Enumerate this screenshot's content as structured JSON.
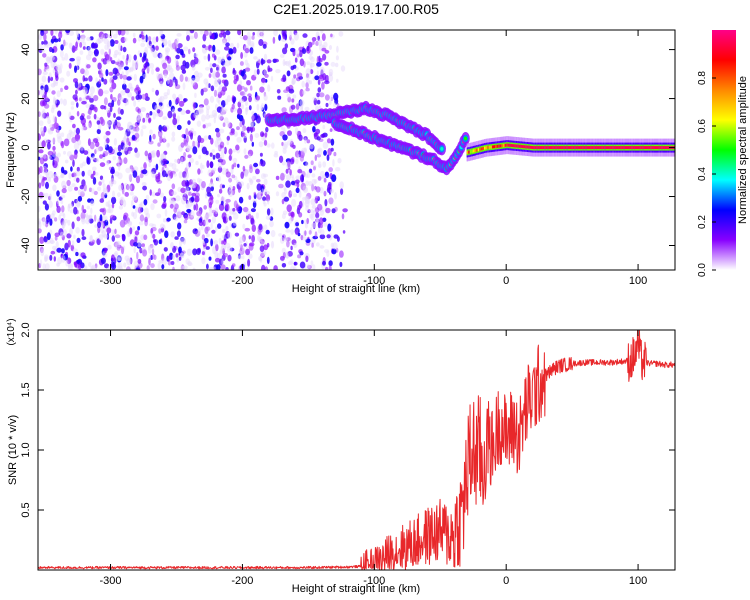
{
  "figure": {
    "title": "C2E1.2025.019.17.00.R05"
  },
  "chart_data": [
    {
      "type": "heatmap",
      "xlabel": "Height of straight line (km)",
      "ylabel": "Frequency (Hz)",
      "xlim": [
        -355,
        128
      ],
      "ylim": [
        -50,
        48
      ],
      "x_ticks": [
        -300,
        -200,
        -100,
        0,
        100
      ],
      "x_tick_labels": [
        "-300",
        "-200",
        "-100",
        "0",
        "100"
      ],
      "y_ticks": [
        -40,
        -20,
        0,
        20,
        40
      ],
      "y_tick_labels": [
        "-40",
        "-20",
        "0",
        "20",
        "40"
      ],
      "colorbar": {
        "label": "Normalized spectral amplitude",
        "range": [
          0,
          1
        ],
        "ticks": [
          0,
          0.2,
          0.4,
          0.6,
          0.8
        ],
        "tick_labels": [
          "0.0",
          "0.2",
          "0.4",
          "0.6",
          "0.8"
        ],
        "colors": [
          "#ffffff",
          "#8800ff",
          "#0000ff",
          "#00ffff",
          "#00ff00",
          "#ffff00",
          "#ff8800",
          "#ff0000",
          "#ff0088"
        ]
      },
      "features": {
        "noise_region_x": [
          -355,
          -120
        ],
        "noise_gap_x": [
          -180,
          -170
        ],
        "upper_track": [
          [
            -180,
            11
          ],
          [
            -150,
            12
          ],
          [
            -125,
            14
          ],
          [
            -105,
            16
          ],
          [
            -90,
            13
          ],
          [
            -75,
            9
          ],
          [
            -60,
            5
          ],
          [
            -48,
            -1
          ]
        ],
        "lower_track": [
          [
            -130,
            10
          ],
          [
            -110,
            6
          ],
          [
            -90,
            2
          ],
          [
            -70,
            -2
          ],
          [
            -55,
            -5
          ],
          [
            -45,
            -9
          ],
          [
            -38,
            -4
          ],
          [
            -30,
            5
          ]
        ],
        "tail_track": [
          [
            -30,
            -2
          ],
          [
            -15,
            0
          ],
          [
            0,
            1
          ],
          [
            20,
            0
          ],
          [
            60,
            0
          ],
          [
            128,
            0
          ]
        ],
        "tail_amplitude": 0.95
      }
    },
    {
      "type": "line",
      "xlabel": "Height of straight line (km)",
      "ylabel": "SNR (10 * v/v)",
      "y_multiplier": "(x10⁴)",
      "xlim": [
        -355,
        128
      ],
      "ylim": [
        0,
        2.0
      ],
      "x_ticks": [
        -300,
        -200,
        -100,
        0,
        100
      ],
      "x_tick_labels": [
        "-300",
        "-200",
        "-100",
        "0",
        "100"
      ],
      "y_ticks": [
        0.5,
        1.0,
        1.5,
        2.0
      ],
      "y_tick_labels": [
        "0.5",
        "1.0",
        "1.5",
        "2.0"
      ],
      "series": [
        {
          "color": "#e8272a",
          "x": [
            -355,
            -300,
            -250,
            -200,
            -150,
            -120,
            -110,
            -100,
            -95,
            -90,
            -85,
            -80,
            -75,
            -70,
            -65,
            -60,
            -55,
            -50,
            -45,
            -40,
            -35,
            -32,
            -30,
            -28,
            -25,
            -22,
            -20,
            -18,
            -15,
            -10,
            -5,
            0,
            5,
            10,
            15,
            20,
            25,
            30,
            35,
            40,
            50,
            60,
            70,
            80,
            90,
            95,
            98,
            100,
            102,
            105,
            110,
            115,
            120,
            128
          ],
          "y": [
            0.02,
            0.02,
            0.02,
            0.02,
            0.02,
            0.025,
            0.03,
            0.05,
            0.08,
            0.12,
            0.15,
            0.18,
            0.2,
            0.22,
            0.25,
            0.28,
            0.3,
            0.32,
            0.3,
            0.28,
            0.35,
            0.6,
            0.75,
            0.9,
            1.0,
            0.95,
            1.0,
            0.8,
            1.1,
            1.0,
            1.25,
            1.1,
            1.2,
            1.1,
            1.35,
            1.45,
            1.55,
            1.62,
            1.67,
            1.7,
            1.72,
            1.73,
            1.73,
            1.73,
            1.74,
            1.75,
            1.8,
            1.9,
            1.75,
            1.73,
            1.72,
            1.72,
            1.71,
            1.71
          ]
        }
      ]
    }
  ]
}
